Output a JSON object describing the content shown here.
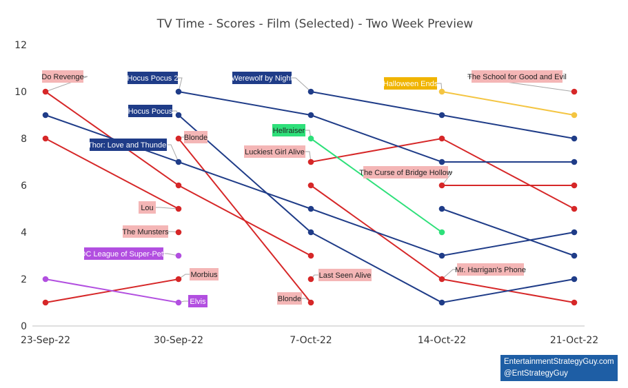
{
  "chart_data": {
    "type": "line",
    "title": "TV Time - Scores - Film (Selected) - Two Week Preview",
    "x_ticks": [
      "23-Sep-22",
      "30-Sep-22",
      "7-Oct-22",
      "14-Oct-22",
      "21-Oct-22"
    ],
    "ylim": [
      0,
      12
    ],
    "y_ticks": [
      0,
      2,
      4,
      6,
      8,
      10,
      12
    ],
    "grid": false,
    "colors": {
      "red": "#d62728",
      "navy": "#1f3c88",
      "gold": "#f4c542",
      "green": "#2ee07a",
      "purple": "#b24fe0"
    },
    "series": [
      {
        "color": "red",
        "points": [
          [
            0,
            10
          ],
          [
            1,
            6
          ],
          [
            2,
            3
          ]
        ]
      },
      {
        "color": "red",
        "points": [
          [
            0,
            8
          ],
          [
            1,
            5
          ]
        ]
      },
      {
        "color": "red",
        "points": [
          [
            0,
            1
          ],
          [
            1,
            2
          ]
        ]
      },
      {
        "color": "red",
        "points": [
          [
            1,
            8
          ],
          [
            2,
            1
          ]
        ]
      },
      {
        "color": "red",
        "points": [
          [
            1,
            4
          ]
        ]
      },
      {
        "color": "red",
        "points": [
          [
            2,
            7
          ],
          [
            3,
            8
          ],
          [
            4,
            5
          ]
        ]
      },
      {
        "color": "red",
        "points": [
          [
            2,
            6
          ],
          [
            3,
            2
          ],
          [
            4,
            1
          ]
        ]
      },
      {
        "color": "red",
        "points": [
          [
            2,
            2
          ]
        ]
      },
      {
        "color": "red",
        "points": [
          [
            3,
            6
          ],
          [
            4,
            6
          ]
        ]
      },
      {
        "color": "red",
        "points": [
          [
            4,
            10
          ]
        ]
      },
      {
        "color": "navy",
        "points": [
          [
            0,
            9
          ],
          [
            1,
            7
          ],
          [
            2,
            5
          ],
          [
            3,
            3
          ],
          [
            4,
            4
          ]
        ]
      },
      {
        "color": "navy",
        "points": [
          [
            1,
            10
          ],
          [
            2,
            9
          ],
          [
            3,
            7
          ],
          [
            4,
            7
          ]
        ]
      },
      {
        "color": "navy",
        "points": [
          [
            1,
            9
          ],
          [
            2,
            4
          ],
          [
            3,
            1
          ],
          [
            4,
            2
          ]
        ]
      },
      {
        "color": "navy",
        "points": [
          [
            2,
            10
          ],
          [
            3,
            9
          ],
          [
            4,
            8
          ]
        ]
      },
      {
        "color": "navy",
        "points": [
          [
            3,
            5
          ],
          [
            4,
            3
          ]
        ]
      },
      {
        "color": "gold",
        "points": [
          [
            3,
            10
          ],
          [
            4,
            9
          ]
        ]
      },
      {
        "color": "green",
        "points": [
          [
            2,
            8
          ],
          [
            3,
            4
          ]
        ]
      },
      {
        "color": "purple",
        "points": [
          [
            0,
            2
          ],
          [
            1,
            1
          ]
        ]
      },
      {
        "color": "purple",
        "points": [
          [
            1,
            3
          ]
        ]
      }
    ],
    "annotations": [
      {
        "text": "Do Revenge",
        "style": "pink",
        "at": [
          0,
          10
        ]
      },
      {
        "text": "Hocus Pocus 2",
        "style": "navy",
        "at": [
          1,
          10
        ]
      },
      {
        "text": "Hocus Pocus",
        "style": "navy",
        "at": [
          1,
          9
        ]
      },
      {
        "text": "Thor: Love and Thunder",
        "style": "navy",
        "at": [
          1,
          7
        ]
      },
      {
        "text": "Blonde",
        "style": "pink",
        "at": [
          1,
          8
        ]
      },
      {
        "text": "Lou",
        "style": "pink",
        "at": [
          1,
          5
        ]
      },
      {
        "text": "The Munsters",
        "style": "pink",
        "at": [
          1,
          4
        ]
      },
      {
        "text": "DC League of Super-Pets",
        "style": "purple",
        "at": [
          1,
          3
        ]
      },
      {
        "text": "Morbius",
        "style": "pink",
        "at": [
          1,
          2
        ]
      },
      {
        "text": "Elvis",
        "style": "purple",
        "at": [
          1,
          1
        ]
      },
      {
        "text": "Werewolf by Night",
        "style": "navy",
        "at": [
          2,
          10
        ]
      },
      {
        "text": "Hellraiser",
        "style": "green",
        "at": [
          2,
          8
        ]
      },
      {
        "text": "Luckiest Girl Alive",
        "style": "pink",
        "at": [
          2,
          7
        ]
      },
      {
        "text": "Last Seen Alive",
        "style": "pink",
        "at": [
          2,
          2
        ]
      },
      {
        "text": "Blonde",
        "style": "pink",
        "at": [
          2,
          1
        ]
      },
      {
        "text": "Halloween Ends",
        "style": "gold",
        "at": [
          3,
          10
        ]
      },
      {
        "text": "The Curse of Bridge Hollow",
        "style": "pink",
        "at": [
          3,
          6
        ]
      },
      {
        "text": "Mr. Harrigan's Phone",
        "style": "pink",
        "at": [
          3,
          2
        ]
      },
      {
        "text": "The School for Good and Evil",
        "style": "pink",
        "at": [
          4,
          10
        ]
      }
    ]
  },
  "credit": {
    "line1": "EntertainmentStrategyGuy.com",
    "line2": "@EntStrategyGuy"
  }
}
